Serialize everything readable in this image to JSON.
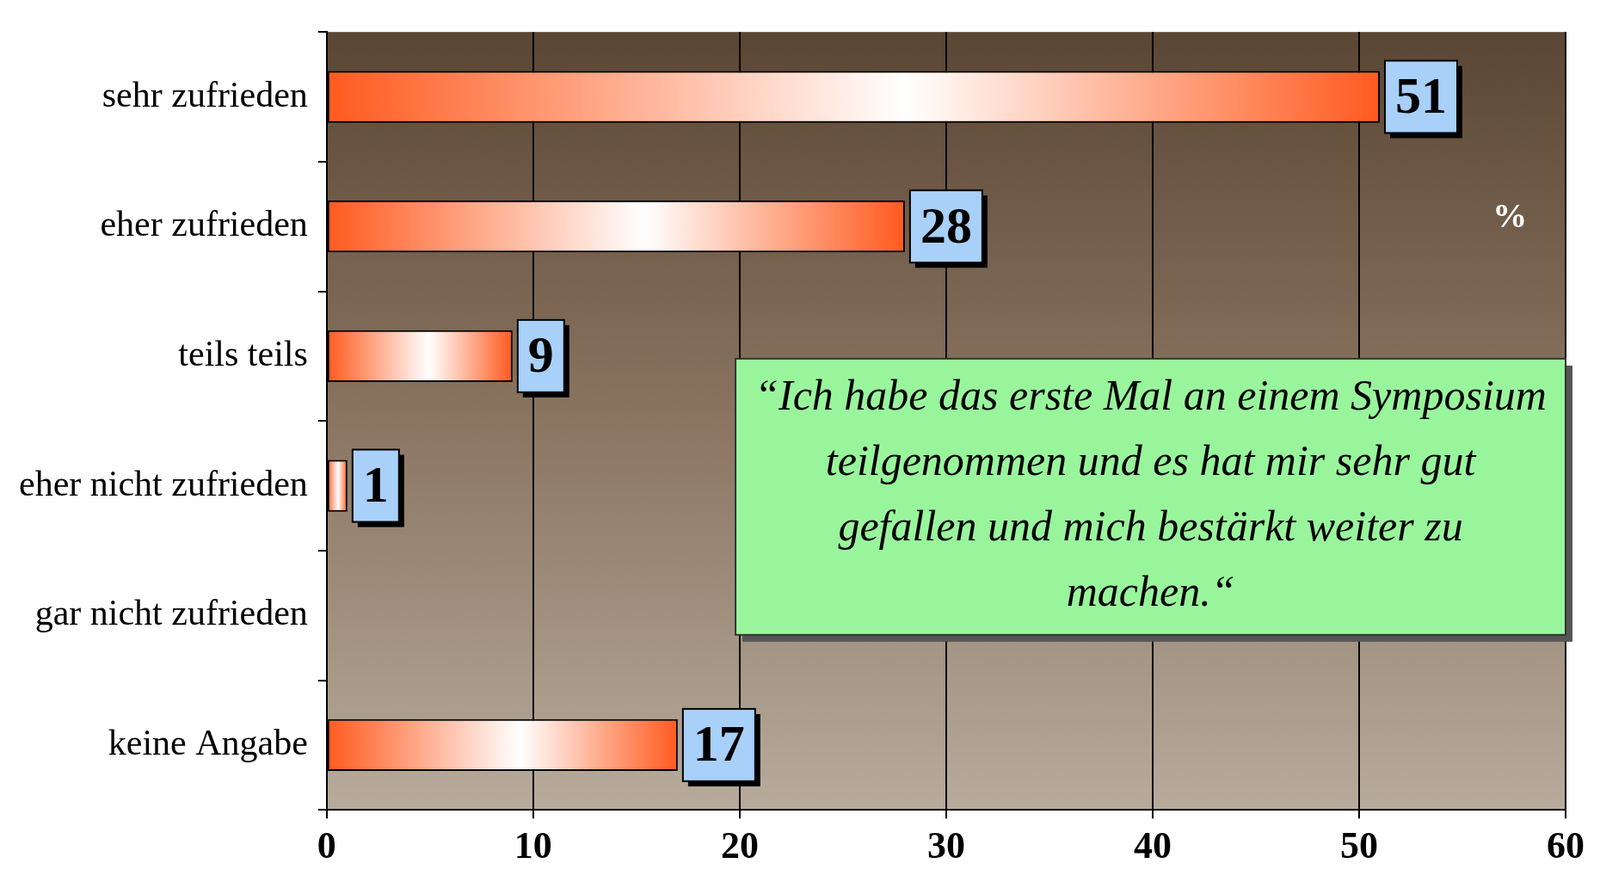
{
  "chart_data": {
    "type": "bar",
    "orientation": "horizontal",
    "categories": [
      "sehr zufrieden",
      "eher zufrieden",
      "teils teils",
      "eher nicht zufrieden",
      "gar nicht zufrieden",
      "keine Angabe"
    ],
    "values": [
      51,
      28,
      9,
      1,
      null,
      17
    ],
    "color": "#ff5a1e",
    "xlim": [
      0,
      60
    ],
    "xticks": [
      0,
      10,
      20,
      30,
      40,
      50,
      60
    ],
    "grid": true,
    "data_labels": true,
    "annotations": [
      {
        "text": "%"
      },
      {
        "text": "“Ich habe das erste Mal an einem Symposium teilgenommen und es hat mir sehr gut gefallen und mich bestärkt weiter zu machen.“"
      }
    ]
  }
}
